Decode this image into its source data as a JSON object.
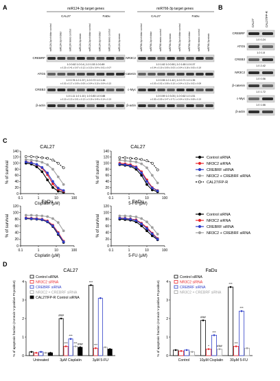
{
  "panel_labels": {
    "A": "A",
    "B": "B",
    "C": "C",
    "D": "D"
  },
  "panelA": {
    "left_header": "miR124-3p target genes",
    "right_header": "miR766-3p target genes",
    "cell_lines": [
      "CAL27",
      "FaDu"
    ],
    "lanes_left": [
      "miR124-3p inhibitor control",
      "miR124-3p inhibitor",
      "miR124 mimic control",
      "miR124-3p mimic",
      "miR124-3p inhibitor control",
      "miR124-3p inhibitor",
      "miR124 mimic control",
      "miR124-3p mimic"
    ],
    "lanes_right": [
      "miR766-3p inhibitor control",
      "miR766-3p inhibitor",
      "miR766 mimic control",
      "miR766-3p mimic",
      "miR766-3p inhibitor control",
      "miR766-3p inhibitor",
      "miR766 mimic control",
      "miR766-3p mimic"
    ],
    "left_rows": [
      {
        "name": "CREBRF",
        "vals": "1.0   0.62   1.0   0.4  |  1.0   1.53   1.0   0.89",
        "sd": "± 0.25 ± 0.41 ± 0.07 ± 0.12 | ± 0.20 ± 0.04 ± 0.01 ± 0.07"
      },
      {
        "name": "ATG5",
        "vals": "1.0   0.76   1.0   1.37  |  1.0   0.72   1.0   1.46",
        "sd": "± 0.02 ± 0.17 ± 0.09 ± 0.09 | ± 0.04 ± 0.10 ± 0.04 ± 0.15"
      },
      {
        "name": "CREB3",
        "vals": "1.0   1.11   1.0   1.10  |  1.0   0.83   1.0   0.88",
        "sd": "± 0.19 ± 0.13 ± 0.01 ± 0.13 | ± 0.19 ± 0.40 ± 0.14 ± 0.19"
      },
      {
        "name": "β-actin",
        "vals": "",
        "sd": ""
      }
    ],
    "right_rows": [
      {
        "name": "NR3C2",
        "vals": "1.0   1.62   1.0   0.50  |  1.0   1.65   1.0   0.37",
        "sd": "± 0.04 ± 0.19 ± 0.09 ± 0.03 | ± 0.04 ± 0.18 ± 0.05 ± 0.18"
      },
      {
        "name": "β-catenin",
        "vals": "1.0   0.55   1.0   1.42  |  1.0   0.71   1.0   1.35",
        "sd": "± 0.03 ± 0.02 ± 0.08 ± 0.10 | ± 0.04 ± 0.13 ± 0.02 ± 0.08"
      },
      {
        "name": "c-Myc",
        "vals": "1.0   0.59   1.0   3.03  |  1.0   0.62   1.0   1.51",
        "sd": "± 0.05 ± 0.09 ± 0.47 ± 0.71 | ± 0.04 ± 0.20 ± 0.08 ± 0.19"
      },
      {
        "name": "β-actin",
        "vals": "",
        "sd": ""
      }
    ]
  },
  "panelB": {
    "lanes": [
      "CAL27",
      "CAL27/FP-R"
    ],
    "rows": [
      {
        "name": "CREBRF",
        "vals": "1.0   0.24"
      },
      {
        "name": "ATG5",
        "vals": "1.0   1.8"
      },
      {
        "name": "CREB3",
        "vals": "1.0   2.42"
      },
      {
        "name": "NR3C2",
        "vals": "1.0   0.56"
      },
      {
        "name": "β-catenin",
        "vals": "1.0   1.72"
      },
      {
        "name": "c-Myc",
        "vals": "1.0   1.66"
      },
      {
        "name": "β-actin",
        "vals": ""
      }
    ]
  },
  "colors": {
    "control": "#000000",
    "nr3c2": "#e8262b",
    "crebrf": "#2e3ec8",
    "combo": "#9e9e9e",
    "resistant": "#000000"
  },
  "legend_c_top": [
    "Control siRNA",
    "NR3C2 siRNA",
    "CREBRF siRNA",
    "NR3C2 + CREBRF siRNA",
    "CAL27/FP-R"
  ],
  "legend_c_bottom": [
    "Control siRNA",
    "NR3C2 siRNA",
    "CREBRF siRNA",
    "NR3C2 + CREBRF siRNA"
  ],
  "chart_data": [
    {
      "type": "line",
      "title": "CAL27",
      "xlabel": "Cisplatin (μM)",
      "ylabel": "% of survival",
      "xscale": "log",
      "xlim": [
        0.1,
        100
      ],
      "ylim": [
        0,
        140
      ],
      "x": [
        0.2,
        0.4,
        0.8,
        1.6,
        3.2,
        6.4,
        12.8,
        25.6
      ],
      "series": [
        {
          "name": "Control siRNA",
          "values": [
            100,
            97,
            88,
            72,
            45,
            20,
            8,
            4
          ]
        },
        {
          "name": "NR3C2 siRNA",
          "values": [
            105,
            102,
            95,
            84,
            62,
            32,
            14,
            8
          ]
        },
        {
          "name": "CREBRF siRNA",
          "values": [
            104,
            101,
            96,
            86,
            68,
            40,
            18,
            10
          ]
        },
        {
          "name": "NR3C2 + CREBRF siRNA",
          "values": [
            112,
            110,
            108,
            103,
            95,
            80,
            55,
            30
          ]
        },
        {
          "name": "CAL27/FP-R",
          "values": [
            122,
            122,
            120,
            118,
            116,
            110,
            100,
            85
          ]
        }
      ]
    },
    {
      "type": "line",
      "title": "CAL27",
      "xlabel": "5-FU (μM)",
      "ylabel": "% of survival",
      "xscale": "log",
      "xlim": [
        0.1,
        100
      ],
      "ylim": [
        0,
        140
      ],
      "x": [
        0.3,
        0.6,
        1.2,
        2.5,
        5,
        10,
        20,
        40
      ],
      "series": [
        {
          "name": "Control siRNA",
          "values": [
            95,
            93,
            90,
            80,
            60,
            30,
            12,
            6
          ]
        },
        {
          "name": "NR3C2 siRNA",
          "values": [
            100,
            98,
            95,
            88,
            72,
            45,
            20,
            10
          ]
        },
        {
          "name": "CREBRF siRNA",
          "values": [
            97,
            95,
            92,
            86,
            68,
            40,
            18,
            9
          ]
        },
        {
          "name": "NR3C2 + CREBRF siRNA",
          "values": [
            110,
            108,
            106,
            104,
            98,
            85,
            60,
            35
          ]
        },
        {
          "name": "CAL27/FP-R",
          "values": [
            118,
            118,
            116,
            115,
            112,
            108,
            100,
            78
          ]
        }
      ]
    },
    {
      "type": "line",
      "title": "FaDu",
      "xlabel": "Cisplatin (μM)",
      "ylabel": "% of survival",
      "xscale": "log",
      "xlim": [
        0.1,
        100
      ],
      "ylim": [
        0,
        120
      ],
      "x": [
        0.2,
        0.4,
        0.8,
        1.6,
        3.2,
        6.4,
        12.8,
        25.6
      ],
      "series": [
        {
          "name": "Control siRNA",
          "values": [
            82,
            81,
            80,
            78,
            72,
            58,
            34,
            10
          ]
        },
        {
          "name": "NR3C2 siRNA",
          "values": [
            84,
            83,
            82,
            80,
            75,
            62,
            40,
            14
          ]
        },
        {
          "name": "CREBRF siRNA",
          "values": [
            83,
            82,
            81,
            79,
            73,
            60,
            37,
            12
          ]
        },
        {
          "name": "NR3C2 + CREBRF siRNA",
          "values": [
            92,
            92,
            91,
            90,
            88,
            82,
            70,
            45
          ]
        }
      ]
    },
    {
      "type": "line",
      "title": "FaDu",
      "xlabel": "5-FU (μM)",
      "ylabel": "% of survival",
      "xscale": "log",
      "xlim": [
        0.1,
        100
      ],
      "ylim": [
        0,
        120
      ],
      "x": [
        0.3,
        0.6,
        1.2,
        2.5,
        5,
        10,
        20,
        40
      ],
      "series": [
        {
          "name": "Control siRNA",
          "values": [
            80,
            79,
            77,
            72,
            60,
            45,
            30,
            18
          ]
        },
        {
          "name": "NR3C2 siRNA",
          "values": [
            84,
            83,
            81,
            78,
            68,
            55,
            38,
            22
          ]
        },
        {
          "name": "CREBRF siRNA",
          "values": [
            83,
            82,
            80,
            76,
            66,
            52,
            36,
            20
          ]
        },
        {
          "name": "NR3C2 + CREBRF siRNA",
          "values": [
            90,
            90,
            89,
            87,
            82,
            72,
            55,
            35
          ]
        }
      ]
    },
    {
      "type": "bar",
      "title": "CAL27",
      "ylabel": "% of apoptosis fraction (Annexin V-positive PI-positive)",
      "ylim": [
        0,
        4
      ],
      "yticks": [
        0,
        1,
        2,
        3,
        4
      ],
      "categories": [
        "Untreated",
        "3μM Cisplatin",
        "3μM 5-FU"
      ],
      "legend": [
        "Control siRNA",
        "NR3C2 siRNA",
        "CREBRF siRNA",
        "NR3C2 + CREBRF siRNA",
        "CAL27/FP-R Control siRNA"
      ],
      "series": [
        {
          "name": "Control siRNA",
          "values": [
            0.2,
            2.0,
            3.8
          ]
        },
        {
          "name": "NR3C2 siRNA",
          "values": [
            0.15,
            0.5,
            0.4
          ]
        },
        {
          "name": "CREBRF siRNA",
          "values": [
            0.2,
            0.9,
            3.1
          ]
        },
        {
          "name": "NR3C2 + CREBRF siRNA",
          "values": [
            0.15,
            0.5,
            0.45
          ]
        },
        {
          "name": "CAL27/FP-R Control siRNA",
          "values": [
            0.15,
            0.45,
            0.35
          ]
        }
      ],
      "annotations": [
        "###",
        "***",
        "***",
        "***",
        "###",
        "***",
        "***"
      ]
    },
    {
      "type": "bar",
      "title": "FaDu",
      "ylabel": "% of apoptosis fraction (Annexin V-positive PI-positive)",
      "ylim": [
        0,
        4
      ],
      "yticks": [
        0,
        1,
        2,
        3,
        4
      ],
      "categories": [
        "Control",
        "10μM Cisplatin",
        "30μM 5-FU"
      ],
      "legend": [
        "Control siRNA",
        "NR3C2 siRNA",
        "CREBRF siRNA",
        "NR3C2 + CREBRF siRNA"
      ],
      "series": [
        {
          "name": "Control siRNA",
          "values": [
            0.3,
            1.9,
            3.7
          ]
        },
        {
          "name": "NR3C2 siRNA",
          "values": [
            0.25,
            0.35,
            0.5
          ]
        },
        {
          "name": "CREBRF siRNA",
          "values": [
            0.3,
            1.1,
            2.4
          ]
        },
        {
          "name": "NR3C2 + CREBRF siRNA",
          "values": [
            0.2,
            0.35,
            0.4
          ]
        }
      ],
      "annotations": [
        "###",
        "*",
        "***",
        "###",
        "***",
        "***",
        "***"
      ]
    }
  ]
}
